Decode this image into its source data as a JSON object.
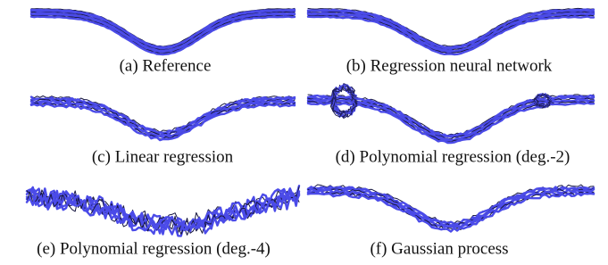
{
  "figure": {
    "panels": [
      {
        "caption": "(a) Reference"
      },
      {
        "caption": "(b) Regression neural network"
      },
      {
        "caption": "(c) Linear regression"
      },
      {
        "caption": "(d) Polynomial regression (deg.-2)"
      },
      {
        "caption": "(e) Polynomial regression (deg.-4)"
      },
      {
        "caption": "(f) Gaussian process"
      }
    ]
  }
}
